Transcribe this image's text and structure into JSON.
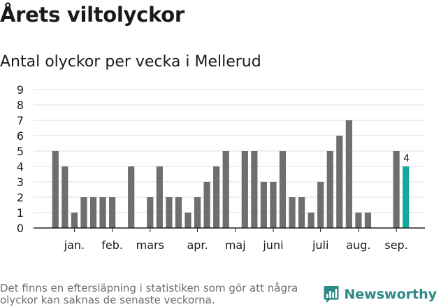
{
  "title": "Årets viltolyckor",
  "subtitle": "Antal olyckor per vecka i Mellerud",
  "footnote": "Det finns en eftersläpning i statistiken som gör att några olyckor kan saknas de senaste veckorna.",
  "brand": {
    "name": "Newsworthy",
    "icon": "newsworthy-logo-icon",
    "color": "#2d8a86"
  },
  "colors": {
    "bar": "#6e6e70",
    "highlight": "#13a89e",
    "grid": "#dcdcdc",
    "axis": "#222222"
  },
  "chart_data": {
    "type": "bar",
    "title": "Årets viltolyckor",
    "subtitle": "Antal olyckor per vecka i Mellerud",
    "xlabel": "",
    "ylabel": "",
    "ylim": [
      0,
      9
    ],
    "yticks": [
      0,
      1,
      2,
      3,
      4,
      5,
      6,
      7,
      8,
      9
    ],
    "grid": true,
    "x": [
      1,
      2,
      3,
      4,
      5,
      6,
      7,
      8,
      9,
      10,
      11,
      12,
      13,
      14,
      15,
      16,
      17,
      18,
      19,
      20,
      21,
      22,
      23,
      24,
      25,
      26,
      27,
      28,
      29,
      30,
      31,
      32,
      33,
      34,
      35,
      36,
      37,
      38,
      39
    ],
    "values": [
      5,
      4,
      1,
      2,
      2,
      2,
      2,
      0,
      4,
      0,
      2,
      4,
      2,
      2,
      1,
      2,
      3,
      4,
      5,
      0,
      5,
      5,
      3,
      3,
      5,
      2,
      2,
      1,
      3,
      5,
      6,
      7,
      1,
      1,
      0,
      0,
      5,
      4,
      0
    ],
    "highlight_index": 37,
    "highlight_label": "4",
    "month_labels": [
      {
        "label": "jan.",
        "x": 3
      },
      {
        "label": "feb.",
        "x": 7
      },
      {
        "label": "mars",
        "x": 11
      },
      {
        "label": "apr.",
        "x": 16
      },
      {
        "label": "maj",
        "x": 20
      },
      {
        "label": "juni",
        "x": 24
      },
      {
        "label": "juli",
        "x": 29
      },
      {
        "label": "aug.",
        "x": 33
      },
      {
        "label": "sep.",
        "x": 37
      }
    ]
  }
}
